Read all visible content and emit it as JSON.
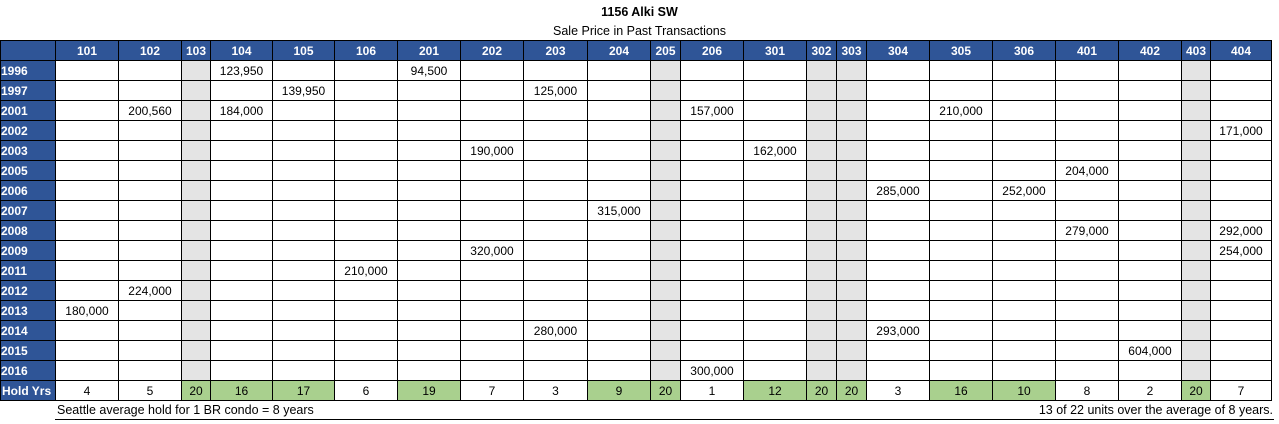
{
  "title": "1156 Alki SW",
  "subtitle": "Sale Price in Past Transactions",
  "units": [
    "101",
    "102",
    "103",
    "104",
    "105",
    "106",
    "201",
    "202",
    "203",
    "204",
    "205",
    "206",
    "301",
    "302",
    "303",
    "304",
    "305",
    "306",
    "401",
    "402",
    "403",
    "404"
  ],
  "rows": [
    {
      "year": "1996",
      "values": [
        "",
        "",
        "",
        "123,950",
        "",
        "",
        "94,500",
        "",
        "",
        "",
        "",
        "",
        "",
        "",
        "",
        "",
        "",
        "",
        "",
        "",
        "",
        ""
      ]
    },
    {
      "year": "1997",
      "values": [
        "",
        "",
        "",
        "",
        "139,950",
        "",
        "",
        "",
        "125,000",
        "",
        "",
        "",
        "",
        "",
        "",
        "",
        "",
        "",
        "",
        "",
        "",
        ""
      ]
    },
    {
      "year": "2001",
      "values": [
        "",
        "200,560",
        "",
        "184,000",
        "",
        "",
        "",
        "",
        "",
        "",
        "",
        "157,000",
        "",
        "",
        "",
        "",
        "210,000",
        "",
        "",
        "",
        "",
        ""
      ]
    },
    {
      "year": "2002",
      "values": [
        "",
        "",
        "",
        "",
        "",
        "",
        "",
        "",
        "",
        "",
        "",
        "",
        "",
        "",
        "",
        "",
        "",
        "",
        "",
        "",
        "",
        "171,000"
      ]
    },
    {
      "year": "2003",
      "values": [
        "",
        "",
        "",
        "",
        "",
        "",
        "",
        "190,000",
        "",
        "",
        "",
        "",
        "162,000",
        "",
        "",
        "",
        "",
        "",
        "",
        "",
        "",
        ""
      ]
    },
    {
      "year": "2005",
      "values": [
        "",
        "",
        "",
        "",
        "",
        "",
        "",
        "",
        "",
        "",
        "",
        "",
        "",
        "",
        "",
        "",
        "",
        "",
        "204,000",
        "",
        "",
        ""
      ]
    },
    {
      "year": "2006",
      "values": [
        "",
        "",
        "",
        "",
        "",
        "",
        "",
        "",
        "",
        "",
        "",
        "",
        "",
        "",
        "",
        "285,000",
        "",
        "252,000",
        "",
        "",
        "",
        ""
      ]
    },
    {
      "year": "2007",
      "values": [
        "",
        "",
        "",
        "",
        "",
        "",
        "",
        "",
        "",
        "315,000",
        "",
        "",
        "",
        "",
        "",
        "",
        "",
        "",
        "",
        "",
        "",
        ""
      ]
    },
    {
      "year": "2008",
      "values": [
        "",
        "",
        "",
        "",
        "",
        "",
        "",
        "",
        "",
        "",
        "",
        "",
        "",
        "",
        "",
        "",
        "",
        "",
        "279,000",
        "",
        "",
        "292,000"
      ]
    },
    {
      "year": "2009",
      "values": [
        "",
        "",
        "",
        "",
        "",
        "",
        "",
        "320,000",
        "",
        "",
        "",
        "",
        "",
        "",
        "",
        "",
        "",
        "",
        "",
        "",
        "",
        "254,000"
      ]
    },
    {
      "year": "2011",
      "values": [
        "",
        "",
        "",
        "",
        "",
        "210,000",
        "",
        "",
        "",
        "",
        "",
        "",
        "",
        "",
        "",
        "",
        "",
        "",
        "",
        "",
        "",
        ""
      ]
    },
    {
      "year": "2012",
      "values": [
        "",
        "224,000",
        "",
        "",
        "",
        "",
        "",
        "",
        "",
        "",
        "",
        "",
        "",
        "",
        "",
        "",
        "",
        "",
        "",
        "",
        "",
        ""
      ]
    },
    {
      "year": "2013",
      "values": [
        "180,000",
        "",
        "",
        "",
        "",
        "",
        "",
        "",
        "",
        "",
        "",
        "",
        "",
        "",
        "",
        "",
        "",
        "",
        "",
        "",
        "",
        ""
      ]
    },
    {
      "year": "2014",
      "values": [
        "",
        "",
        "",
        "",
        "",
        "",
        "",
        "",
        "280,000",
        "",
        "",
        "",
        "",
        "",
        "",
        "293,000",
        "",
        "",
        "",
        "",
        "",
        ""
      ]
    },
    {
      "year": "2015",
      "values": [
        "",
        "",
        "",
        "",
        "",
        "",
        "",
        "",
        "",
        "",
        "",
        "",
        "",
        "",
        "",
        "",
        "",
        "",
        "",
        "604,000",
        "",
        ""
      ]
    },
    {
      "year": "2016",
      "values": [
        "",
        "",
        "",
        "",
        "",
        "",
        "",
        "",
        "",
        "",
        "",
        "300,000",
        "",
        "",
        "",
        "",
        "",
        "",
        "",
        "",
        "",
        ""
      ]
    }
  ],
  "hold": {
    "label": "Hold Yrs",
    "values": [
      "4",
      "5",
      "20",
      "16",
      "17",
      "6",
      "19",
      "7",
      "3",
      "9",
      "20",
      "1",
      "12",
      "20",
      "20",
      "3",
      "16",
      "10",
      "8",
      "2",
      "20",
      "7"
    ]
  },
  "never_sold_units": [
    "103",
    "205",
    "302",
    "303",
    "403"
  ],
  "average_hold_years": 8,
  "colors": {
    "header_blue": "#2f5597",
    "never_sold_gray": "#e4e4e4",
    "above_average_green": "#a9d08e"
  },
  "footer": {
    "left": "Seattle average hold for 1 BR condo = 8 years",
    "right": "13 of 22 units over the average of 8 years."
  }
}
